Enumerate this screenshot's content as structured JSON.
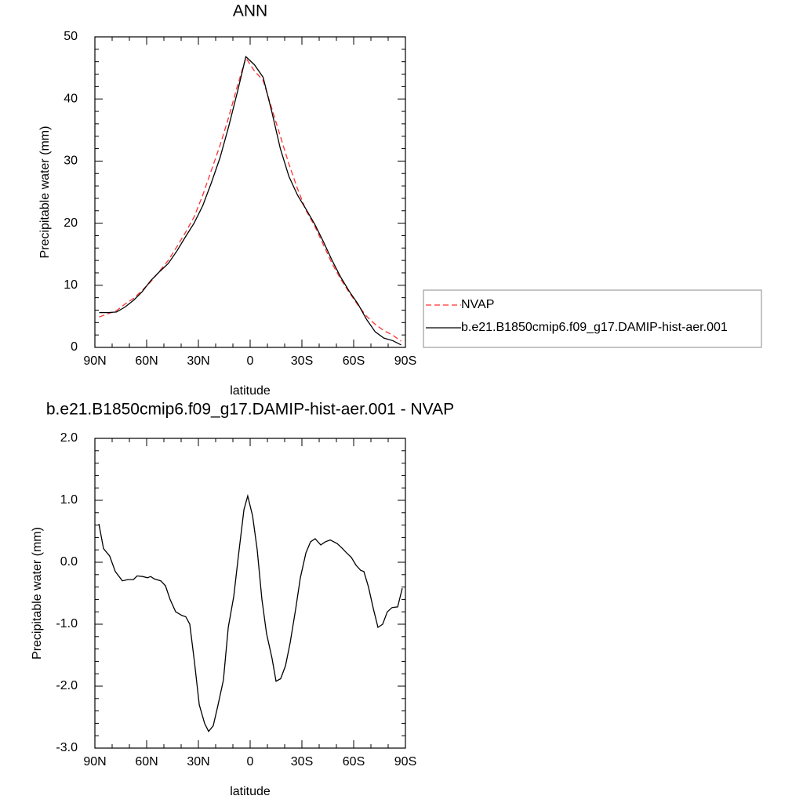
{
  "chart_data": [
    {
      "type": "line",
      "title": "ANN",
      "x_label": "latitude",
      "y_label": "Precipitable water (mm)",
      "xlim": [
        90,
        -90
      ],
      "xticks": [
        {
          "value": 90,
          "label": "90N"
        },
        {
          "value": 60,
          "label": "60N"
        },
        {
          "value": 30,
          "label": "30N"
        },
        0,
        {
          "value": -30,
          "label": "30S"
        },
        {
          "value": -60,
          "label": "60S"
        },
        {
          "value": -90,
          "label": "90S"
        }
      ],
      "ylim": [
        0,
        50
      ],
      "yticks": [
        0,
        10,
        20,
        30,
        40,
        50
      ],
      "legend": "right",
      "x": [
        87.5,
        82.5,
        77.5,
        72.5,
        67.5,
        62.5,
        57.5,
        52.5,
        47.5,
        42.5,
        37.5,
        32.5,
        27.5,
        22.5,
        17.5,
        12.5,
        7.5,
        2.5,
        -2.5,
        -7.5,
        -12.5,
        -17.5,
        -22.5,
        -27.5,
        -32.5,
        -37.5,
        -42.5,
        -47.5,
        -52.5,
        -57.5,
        -62.5,
        -67.5,
        -72.5,
        -77.5,
        -82.5,
        -87.5
      ],
      "series": [
        {
          "name": "NVAP",
          "color": "#ff3030",
          "line_style": "dashed",
          "values": [
            4.9,
            5.4,
            5.9,
            7.0,
            7.9,
            9.2,
            10.6,
            12.3,
            14,
            16.2,
            18.5,
            21,
            24.5,
            28.5,
            32.5,
            37,
            42,
            46.6,
            44.5,
            43,
            38.5,
            34,
            29.5,
            25.5,
            22,
            19.5,
            16.5,
            13.5,
            11,
            8.8,
            6.8,
            5,
            3.7,
            2.7,
            2,
            1.0
          ]
        },
        {
          "name": "b.e21.B1850cmip6.f09_g17.DAMIP-hist-aer.001",
          "color": "#000000",
          "line_style": "solid",
          "values": [
            5.6,
            5.6,
            5.7,
            6.5,
            7.6,
            9.0,
            10.8,
            12.2,
            13.5,
            15.5,
            17.8,
            20,
            22.8,
            26.5,
            30.5,
            35.5,
            41,
            46.8,
            45.5,
            43.5,
            38,
            32,
            27.5,
            24.5,
            22.2,
            19.8,
            17,
            14,
            11.3,
            9,
            7,
            4.5,
            2.5,
            1.5,
            1.1,
            0.4
          ]
        }
      ]
    },
    {
      "type": "line",
      "title": "b.e21.B1850cmip6.f09_g17.DAMIP-hist-aer.001 - NVAP",
      "x_label": "latitude",
      "y_label": "Precipitable water (mm)",
      "xlim": [
        90,
        -90
      ],
      "xticks": [
        {
          "value": 90,
          "label": "90N"
        },
        {
          "value": 60,
          "label": "60N"
        },
        {
          "value": 30,
          "label": "30N"
        },
        0,
        {
          "value": -30,
          "label": "30S"
        },
        {
          "value": -60,
          "label": "60S"
        },
        {
          "value": -90,
          "label": "90S"
        }
      ],
      "ylim": [
        -3,
        2
      ],
      "yticks": [
        {
          "value": -3,
          "label": "-3.0"
        },
        {
          "value": -2,
          "label": "-2.0"
        },
        {
          "value": -1,
          "label": "-1.0"
        },
        {
          "value": 0,
          "label": "0.0"
        },
        {
          "value": 1,
          "label": "1.0"
        },
        {
          "value": 2,
          "label": "2.0"
        }
      ],
      "x": [
        87.7,
        85.0,
        81.4,
        78.2,
        74.1,
        70.9,
        67.7,
        65.5,
        62.3,
        59.5,
        57.7,
        55.5,
        51.8,
        49.1,
        46.4,
        43.2,
        39.5,
        37.3,
        35.0,
        32.3,
        29.5,
        26.4,
        24.1,
        21.4,
        18.6,
        15.5,
        12.7,
        9.5,
        6.8,
        3.6,
        1.4,
        -1.4,
        -4.1,
        -6.8,
        -9.5,
        -12.7,
        -15.0,
        -17.7,
        -20.5,
        -23.2,
        -26.4,
        -29.1,
        -32.3,
        -35.0,
        -37.7,
        -40.9,
        -43.6,
        -46.4,
        -50.5,
        -53.2,
        -55.9,
        -58.6,
        -61.4,
        -64.1,
        -65.9,
        -68.6,
        -71.4,
        -74.1,
        -76.8,
        -79.5,
        -82.3,
        -85.5,
        -88.2
      ],
      "series": [
        {
          "color": "#000000",
          "line_style": "solid",
          "values": [
            0.62,
            0.22,
            0.1,
            -0.15,
            -0.3,
            -0.28,
            -0.28,
            -0.22,
            -0.23,
            -0.25,
            -0.23,
            -0.27,
            -0.3,
            -0.38,
            -0.6,
            -0.8,
            -0.86,
            -0.88,
            -1.0,
            -1.6,
            -2.3,
            -2.6,
            -2.73,
            -2.64,
            -2.3,
            -1.9,
            -1.05,
            -0.55,
            0.1,
            0.85,
            1.07,
            0.75,
            0.2,
            -0.6,
            -1.15,
            -1.55,
            -1.92,
            -1.88,
            -1.67,
            -1.3,
            -0.75,
            -0.25,
            0.15,
            0.33,
            0.38,
            0.28,
            0.33,
            0.36,
            0.3,
            0.23,
            0.15,
            0.08,
            -0.05,
            -0.13,
            -0.15,
            -0.4,
            -0.75,
            -1.05,
            -1.0,
            -0.8,
            -0.73,
            -0.72,
            -0.42
          ]
        }
      ]
    }
  ]
}
